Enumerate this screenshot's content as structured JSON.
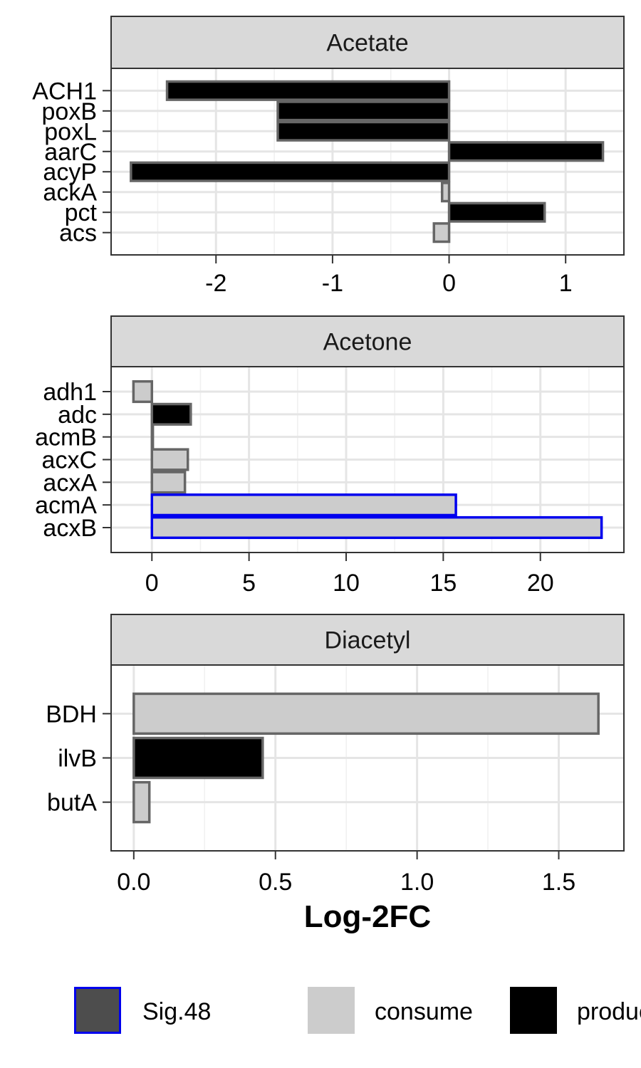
{
  "colors": {
    "consume_fill": "#cccccc",
    "produce_fill": "#000000",
    "bar_outline": "#666666",
    "sig48_outline": "#0000ee",
    "sig48_fill": "#4d4d4d",
    "grid_major": "#e5e5e5",
    "grid_minor": "#f0f0f0",
    "strip_bg": "#d9d9d9",
    "panel_border": "#333333"
  },
  "chart_data": {
    "type": "bar",
    "orientation": "horizontal",
    "xlabel": "Log-2FC",
    "grid": true,
    "legend_position": "bottom",
    "legend": [
      {
        "key": "sig",
        "label": "Sig.48"
      },
      {
        "key": "consume",
        "label": "consume"
      },
      {
        "key": "produce",
        "label": "produce"
      }
    ],
    "panels": [
      {
        "title": "Acetate",
        "xlim": [
          -2.9,
          1.5
        ],
        "xticks": [
          -2,
          -1,
          0,
          1
        ],
        "xtick_labels": [
          "-2",
          "-1",
          "0",
          "1"
        ],
        "bars": [
          {
            "label": "ACH1",
            "value": -2.42,
            "group": "produce",
            "sig": false
          },
          {
            "label": "poxB",
            "value": -1.47,
            "group": "produce",
            "sig": false
          },
          {
            "label": "poxL",
            "value": -1.47,
            "group": "produce",
            "sig": false
          },
          {
            "label": "aarC",
            "value": 1.32,
            "group": "produce",
            "sig": false
          },
          {
            "label": "acyP",
            "value": -2.73,
            "group": "produce",
            "sig": false
          },
          {
            "label": "ackA",
            "value": -0.06,
            "group": "consume",
            "sig": false
          },
          {
            "label": "pct",
            "value": 0.82,
            "group": "produce",
            "sig": false
          },
          {
            "label": "acs",
            "value": -0.13,
            "group": "consume",
            "sig": false
          }
        ]
      },
      {
        "title": "Acetone",
        "xlim": [
          -2.1,
          24.3
        ],
        "xticks": [
          0,
          5,
          10,
          15,
          20
        ],
        "xtick_labels": [
          "0",
          "5",
          "10",
          "15",
          "20"
        ],
        "bars": [
          {
            "label": "adh1",
            "value": -0.95,
            "group": "consume",
            "sig": false
          },
          {
            "label": "adc",
            "value": 2.0,
            "group": "produce",
            "sig": false
          },
          {
            "label": "acmB",
            "value": 0.05,
            "group": "consume",
            "sig": false
          },
          {
            "label": "acxC",
            "value": 1.85,
            "group": "consume",
            "sig": false
          },
          {
            "label": "acxA",
            "value": 1.7,
            "group": "consume",
            "sig": false
          },
          {
            "label": "acmA",
            "value": 15.65,
            "group": "consume",
            "sig": true
          },
          {
            "label": "acxB",
            "value": 23.15,
            "group": "consume",
            "sig": true
          }
        ]
      },
      {
        "title": "Diacetyl",
        "xlim": [
          -0.08,
          1.73
        ],
        "xticks": [
          0.0,
          0.5,
          1.0,
          1.5
        ],
        "xtick_labels": [
          "0.0",
          "0.5",
          "1.0",
          "1.5"
        ],
        "bars": [
          {
            "label": "BDH",
            "value": 1.64,
            "group": "consume",
            "sig": false
          },
          {
            "label": "ilvB",
            "value": 0.455,
            "group": "produce",
            "sig": false
          },
          {
            "label": "butA",
            "value": 0.055,
            "group": "consume",
            "sig": false
          }
        ]
      }
    ]
  }
}
